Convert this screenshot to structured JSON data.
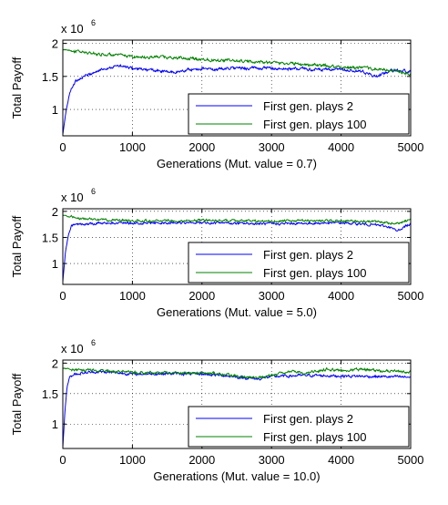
{
  "colors": {
    "series_blue": "#0000ff",
    "series_green": "#008000",
    "grid": "#000000"
  },
  "chart_data": [
    {
      "type": "line",
      "title": "",
      "xlabel": "Generations (Mut. value = 0.7)",
      "ylabel": "Total Payoff",
      "y_multiplier": "x 10",
      "y_multiplier_exp": "6",
      "xlim": [
        0,
        5000
      ],
      "ylim": [
        0.6,
        2.05
      ],
      "xticks": [
        0,
        1000,
        2000,
        3000,
        4000,
        5000
      ],
      "xtick_labels": [
        "0",
        "1000",
        "2000",
        "3000",
        "4000",
        "5000"
      ],
      "yticks": [
        1,
        1.5,
        2
      ],
      "ytick_labels": [
        "1",
        "1.5",
        "2"
      ],
      "grid": true,
      "legend_position": "bottom-right",
      "series": [
        {
          "name": "First gen. plays 2",
          "color": "#0000ff",
          "x": [
            0,
            50,
            100,
            150,
            200,
            300,
            400,
            500,
            600,
            700,
            800,
            900,
            1000,
            1200,
            1400,
            1600,
            1800,
            2000,
            2200,
            2400,
            2600,
            2800,
            3000,
            3200,
            3400,
            3600,
            3800,
            4000,
            4200,
            4400,
            4500,
            4600,
            4800,
            5000
          ],
          "y": [
            0.62,
            1.0,
            1.25,
            1.38,
            1.44,
            1.5,
            1.54,
            1.58,
            1.62,
            1.64,
            1.66,
            1.64,
            1.62,
            1.6,
            1.58,
            1.56,
            1.6,
            1.62,
            1.6,
            1.63,
            1.62,
            1.63,
            1.62,
            1.61,
            1.62,
            1.6,
            1.6,
            1.6,
            1.58,
            1.55,
            1.48,
            1.55,
            1.6,
            1.57
          ]
        },
        {
          "name": "First gen. plays 100",
          "color": "#008000",
          "x": [
            0,
            100,
            200,
            400,
            600,
            800,
            1000,
            1200,
            1400,
            1600,
            1800,
            2000,
            2200,
            2400,
            2600,
            2800,
            3000,
            3200,
            3400,
            3600,
            3800,
            4000,
            4200,
            4400,
            4600,
            4800,
            5000
          ],
          "y": [
            1.9,
            1.9,
            1.88,
            1.85,
            1.83,
            1.82,
            1.8,
            1.79,
            1.8,
            1.78,
            1.77,
            1.76,
            1.75,
            1.74,
            1.73,
            1.72,
            1.71,
            1.7,
            1.69,
            1.67,
            1.66,
            1.64,
            1.63,
            1.62,
            1.6,
            1.58,
            1.52
          ]
        }
      ]
    },
    {
      "type": "line",
      "title": "",
      "xlabel": "Generations (Mut. value = 5.0)",
      "ylabel": "Total Payoff",
      "y_multiplier": "x 10",
      "y_multiplier_exp": "6",
      "xlim": [
        0,
        5000
      ],
      "ylim": [
        0.6,
        2.05
      ],
      "xticks": [
        0,
        1000,
        2000,
        3000,
        4000,
        5000
      ],
      "xtick_labels": [
        "0",
        "1000",
        "2000",
        "3000",
        "4000",
        "5000"
      ],
      "yticks": [
        1,
        1.5,
        2
      ],
      "ytick_labels": [
        "1",
        "1.5",
        "2"
      ],
      "grid": true,
      "legend_position": "bottom-right",
      "series": [
        {
          "name": "First gen. plays 2",
          "color": "#0000ff",
          "x": [
            0,
            40,
            80,
            120,
            160,
            300,
            500,
            800,
            1000,
            1500,
            2000,
            2500,
            3000,
            3500,
            4000,
            4500,
            4700,
            4800,
            4900,
            5000
          ],
          "y": [
            0.65,
            1.25,
            1.55,
            1.7,
            1.75,
            1.76,
            1.77,
            1.78,
            1.77,
            1.78,
            1.78,
            1.77,
            1.76,
            1.77,
            1.78,
            1.74,
            1.7,
            1.62,
            1.7,
            1.76
          ]
        },
        {
          "name": "First gen. plays 100",
          "color": "#008000",
          "x": [
            0,
            100,
            200,
            500,
            1000,
            1500,
            2000,
            2500,
            3000,
            3500,
            4000,
            4500,
            4800,
            4900,
            5000
          ],
          "y": [
            1.92,
            1.9,
            1.87,
            1.84,
            1.82,
            1.82,
            1.83,
            1.82,
            1.81,
            1.82,
            1.82,
            1.8,
            1.76,
            1.8,
            1.86
          ]
        }
      ]
    },
    {
      "type": "line",
      "title": "",
      "xlabel": "Generations (Mut. value = 10.0)",
      "ylabel": "Total Payoff",
      "y_multiplier": "x 10",
      "y_multiplier_exp": "6",
      "xlim": [
        0,
        5000
      ],
      "ylim": [
        0.6,
        2.05
      ],
      "xticks": [
        0,
        1000,
        2000,
        3000,
        4000,
        5000
      ],
      "xtick_labels": [
        "0",
        "1000",
        "2000",
        "3000",
        "4000",
        "5000"
      ],
      "yticks": [
        1,
        1.5,
        2
      ],
      "ytick_labels": [
        "1",
        "1.5",
        "2"
      ],
      "grid": true,
      "legend_position": "bottom-right",
      "series": [
        {
          "name": "First gen. plays 2",
          "color": "#0000ff",
          "x": [
            0,
            30,
            60,
            100,
            150,
            300,
            500,
            800,
            1000,
            1500,
            2000,
            2300,
            2600,
            2800,
            3000,
            3500,
            4000,
            4500,
            5000
          ],
          "y": [
            0.62,
            1.2,
            1.6,
            1.78,
            1.82,
            1.84,
            1.86,
            1.84,
            1.82,
            1.83,
            1.82,
            1.8,
            1.76,
            1.74,
            1.78,
            1.8,
            1.79,
            1.78,
            1.77
          ]
        },
        {
          "name": "First gen. plays 100",
          "color": "#008000",
          "x": [
            0,
            100,
            300,
            600,
            1000,
            1500,
            2000,
            2300,
            2600,
            2800,
            3000,
            3300,
            3500,
            3800,
            4000,
            4300,
            4600,
            5000
          ],
          "y": [
            1.92,
            1.9,
            1.88,
            1.87,
            1.85,
            1.84,
            1.84,
            1.82,
            1.78,
            1.76,
            1.8,
            1.86,
            1.84,
            1.9,
            1.88,
            1.9,
            1.87,
            1.85
          ]
        }
      ]
    }
  ]
}
